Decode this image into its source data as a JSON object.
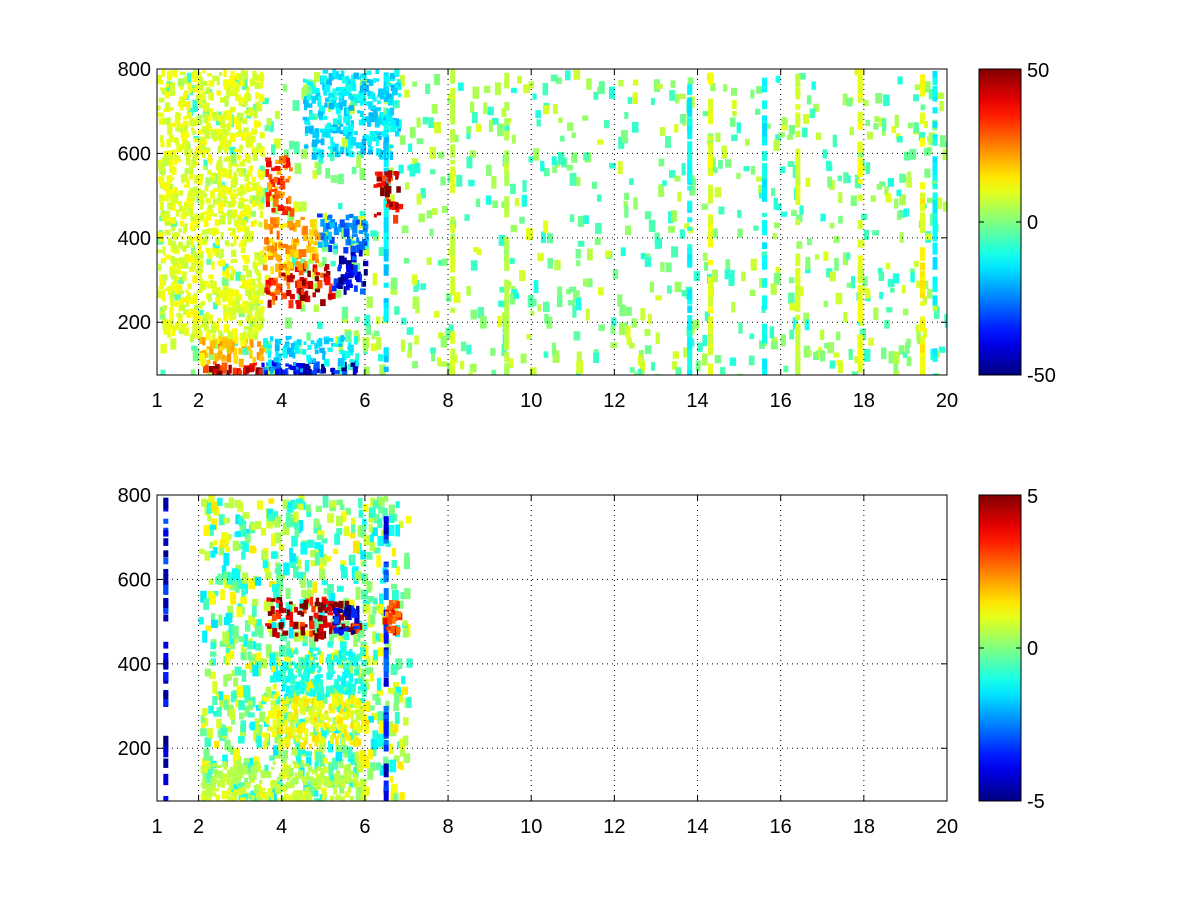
{
  "chart_data": [
    {
      "type": "heatmap",
      "title": "",
      "xlabel": "",
      "ylabel": "",
      "xlim": [
        1,
        20
      ],
      "ylim": [
        75,
        800
      ],
      "xticks": [
        1,
        2,
        4,
        6,
        8,
        10,
        12,
        14,
        16,
        18,
        20
      ],
      "yticks": [
        200,
        400,
        600,
        800
      ],
      "grid": true,
      "colormap": "jet",
      "colorbar": {
        "range": [
          -50,
          50
        ],
        "ticks": [
          50,
          0,
          -50
        ]
      },
      "regions": [
        {
          "x": [
            2.0,
            3.5
          ],
          "y": [
            85,
            110
          ],
          "value": 40
        },
        {
          "x": [
            3.5,
            4.5
          ],
          "y": [
            85,
            110
          ],
          "value": -30
        },
        {
          "x": [
            4.5,
            5.8
          ],
          "y": [
            85,
            110
          ],
          "value": -40
        },
        {
          "x": [
            2.0,
            3.5
          ],
          "y": [
            110,
            170
          ],
          "value": 18
        },
        {
          "x": [
            3.5,
            5.8
          ],
          "y": [
            110,
            170
          ],
          "value": -15
        },
        {
          "x": [
            3.5,
            4.3
          ],
          "y": [
            250,
            320
          ],
          "value": 35
        },
        {
          "x": [
            4.3,
            5.2
          ],
          "y": [
            250,
            340
          ],
          "value": 42
        },
        {
          "x": [
            5.2,
            6.0
          ],
          "y": [
            280,
            380
          ],
          "value": -40
        },
        {
          "x": [
            4.8,
            6.0
          ],
          "y": [
            380,
            460
          ],
          "value": -25
        },
        {
          "x": [
            3.5,
            4.8
          ],
          "y": [
            330,
            450
          ],
          "value": 20
        },
        {
          "x": [
            3.6,
            4.2
          ],
          "y": [
            470,
            600
          ],
          "value": 30
        },
        {
          "x": [
            6.2,
            6.8
          ],
          "y": [
            450,
            560
          ],
          "value": 38
        },
        {
          "x": [
            4.5,
            6.8
          ],
          "y": [
            600,
            800
          ],
          "value": -15
        },
        {
          "x": [
            1.0,
            3.5
          ],
          "y": [
            170,
            800
          ],
          "value": 10
        }
      ],
      "columns": [
        {
          "x": 6.5,
          "value": -15
        },
        {
          "x": 8.1,
          "value": 8
        },
        {
          "x": 9.4,
          "value": 5
        },
        {
          "x": 13.8,
          "value": -12
        },
        {
          "x": 14.3,
          "value": 10
        },
        {
          "x": 15.6,
          "value": -12
        },
        {
          "x": 16.4,
          "value": 8
        },
        {
          "x": 17.9,
          "value": 10
        },
        {
          "x": 19.4,
          "value": 12
        },
        {
          "x": 19.7,
          "value": -12
        }
      ],
      "noise": {
        "x": [
          1.0,
          20.0
        ],
        "values": [
          -10,
          10
        ]
      }
    },
    {
      "type": "heatmap",
      "title": "",
      "xlabel": "",
      "ylabel": "",
      "xlim": [
        1,
        20
      ],
      "ylim": [
        75,
        800
      ],
      "xticks": [
        1,
        2,
        4,
        6,
        8,
        10,
        12,
        14,
        16,
        18,
        20
      ],
      "yticks": [
        200,
        400,
        600,
        800
      ],
      "grid": true,
      "colormap": "jet",
      "colorbar": {
        "range": [
          -5,
          5
        ],
        "ticks": [
          5,
          0,
          -5
        ]
      },
      "regions": [
        {
          "x": [
            2.0,
            5.8
          ],
          "y": [
            85,
            110
          ],
          "value": 0.8
        },
        {
          "x": [
            2.0,
            5.8
          ],
          "y": [
            110,
            170
          ],
          "value": 0.6
        },
        {
          "x": [
            3.5,
            6.0
          ],
          "y": [
            210,
            330
          ],
          "value": 1.2
        },
        {
          "x": [
            4.0,
            6.0
          ],
          "y": [
            330,
            440
          ],
          "value": -1.0
        },
        {
          "x": [
            3.6,
            5.8
          ],
          "y": [
            470,
            560
          ],
          "value": 4.5
        },
        {
          "x": [
            6.4,
            6.8
          ],
          "y": [
            480,
            560
          ],
          "value": 3.0
        },
        {
          "x": [
            5.2,
            5.8
          ],
          "y": [
            480,
            540
          ],
          "value": -4.5
        }
      ],
      "columns": [
        {
          "x": 1.2,
          "value": -4.0
        },
        {
          "x": 6.5,
          "value": -3.5
        }
      ],
      "noise": {
        "x": [
          2.0,
          7.0
        ],
        "values": [
          -1.5,
          1.5
        ]
      }
    }
  ]
}
